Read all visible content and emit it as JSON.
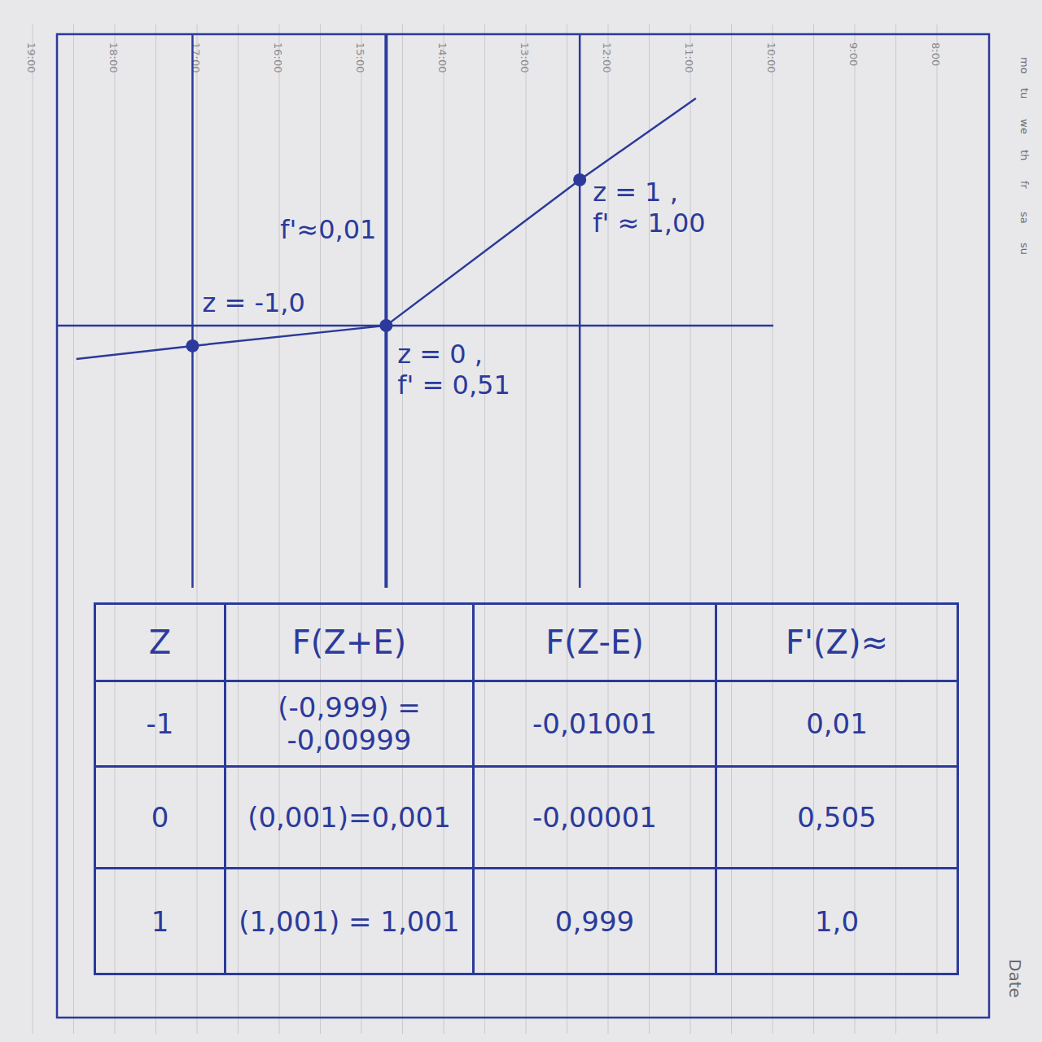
{
  "chart_data": {
    "type": "line",
    "x": [
      -1.6,
      -1,
      0,
      1,
      1.6
    ],
    "values": [
      -0.23,
      -0.14,
      0,
      1,
      1.56
    ],
    "color": "#2b3a9b",
    "xlim": [
      -1.7,
      2.0
    ],
    "ylim": [
      -1.8,
      2.0
    ],
    "tick_labels": false,
    "grid": false,
    "points": [
      {
        "x": -1,
        "y": -0.14,
        "label": "z = -1,0"
      },
      {
        "x": 0,
        "y": 0,
        "label": "z = 0 , f' = 0,51"
      },
      {
        "x": 1,
        "y": 1,
        "label": "z = 1 , f' ≈ 1,00"
      }
    ],
    "annotations": [
      {
        "x": -0.05,
        "y": 0.6,
        "text": "f'≈0,01"
      }
    ]
  },
  "table": {
    "header": [
      "Z",
      "F(Z+E)",
      "F(Z-E)",
      "F'(Z)≈"
    ],
    "rows": [
      [
        "-1",
        "(-0,999) = -0,00999",
        "-0,01001",
        "0,01"
      ],
      [
        "0",
        "(0,001)=0,001",
        "-0,00001",
        "0,505"
      ],
      [
        "1",
        "(1,001) = 1,001",
        "0,999",
        "1,0"
      ]
    ]
  },
  "notebook": {
    "hours": [
      "19:00",
      "18:00",
      "17:00",
      "16:00",
      "15:00",
      "14:00",
      "13:00",
      "12:00",
      "11:00",
      "10:00",
      "9:00",
      "8:00"
    ],
    "weekdays": [
      "mo",
      "tu",
      "we",
      "th",
      "fr",
      "sa",
      "su"
    ],
    "date_label": "Date"
  }
}
